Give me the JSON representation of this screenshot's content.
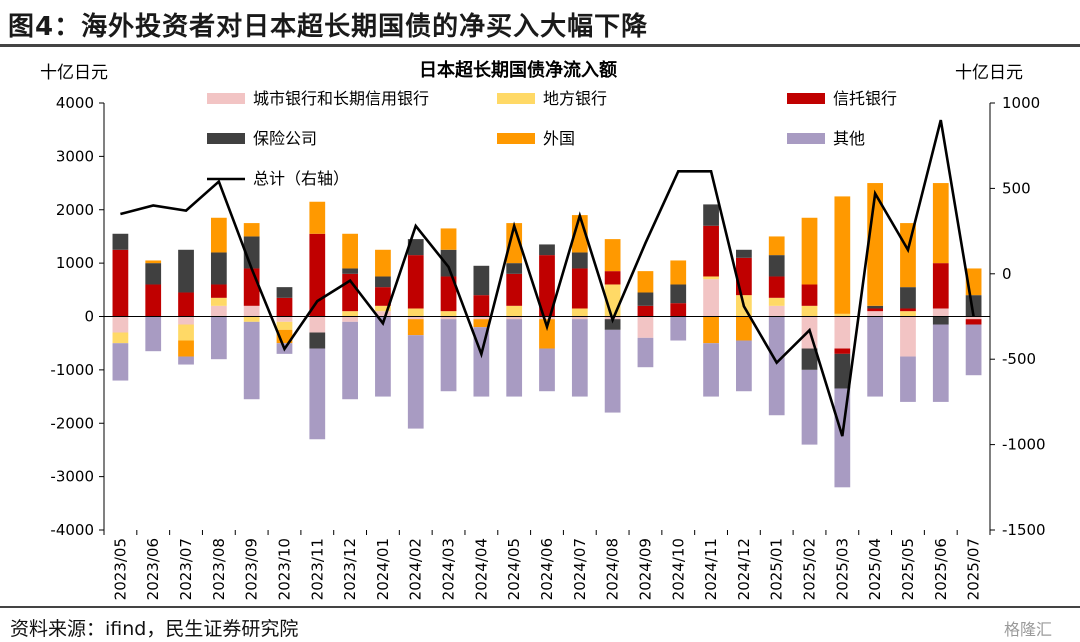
{
  "figure_title": "图4：海外投资者对日本超长期国债的净买入大幅下降",
  "source": "资料来源：ifind，民生证券研究院",
  "watermark": "格隆汇",
  "chart_data": {
    "type": "bar",
    "stacked": true,
    "title": "日本超长期国债净流入额",
    "left_unit": "十亿日元",
    "right_unit": "十亿日元",
    "ylim": [
      -4000,
      4000
    ],
    "yticks": [
      4000,
      3000,
      2000,
      1000,
      0,
      -1000,
      -2000,
      -3000,
      -4000
    ],
    "ylim_right": [
      -1500,
      1000
    ],
    "yticks_right": [
      1000,
      500,
      0,
      -500,
      -1000,
      -1500
    ],
    "categories": [
      "2023/05",
      "2023/06",
      "2023/07",
      "2023/08",
      "2023/09",
      "2023/10",
      "2023/11",
      "2023/12",
      "2024/01",
      "2024/02",
      "2024/03",
      "2024/04",
      "2024/05",
      "2024/06",
      "2024/07",
      "2024/08",
      "2024/09",
      "2024/10",
      "2024/11",
      "2024/12",
      "2025/01",
      "2025/02",
      "2025/03",
      "2025/04",
      "2025/05",
      "2025/06",
      "2025/07"
    ],
    "series": [
      {
        "name": "城市银行和长期信用银行",
        "color": "#F2C4C4",
        "values": [
          -300,
          0,
          -150,
          200,
          200,
          -100,
          -300,
          -100,
          100,
          -50,
          -50,
          -50,
          -50,
          -50,
          -50,
          -50,
          -400,
          0,
          700,
          0,
          200,
          -600,
          -600,
          100,
          -750,
          150,
          -50
        ]
      },
      {
        "name": "地方银行",
        "color": "#FFD966",
        "values": [
          -200,
          0,
          -300,
          150,
          -100,
          -150,
          0,
          100,
          100,
          150,
          100,
          0,
          200,
          0,
          150,
          600,
          0,
          0,
          50,
          400,
          150,
          200,
          50,
          0,
          100,
          0,
          0
        ]
      },
      {
        "name": "信托银行",
        "color": "#C00000",
        "values": [
          1250,
          600,
          450,
          250,
          700,
          350,
          1550,
          700,
          350,
          1000,
          650,
          400,
          600,
          1150,
          750,
          250,
          200,
          250,
          950,
          700,
          400,
          400,
          -100,
          50,
          50,
          850,
          -100
        ]
      },
      {
        "name": "保险公司",
        "color": "#404040",
        "values": [
          300,
          400,
          800,
          600,
          600,
          200,
          -300,
          100,
          200,
          300,
          500,
          550,
          200,
          200,
          300,
          -200,
          250,
          350,
          400,
          150,
          400,
          -400,
          -650,
          50,
          400,
          -150,
          400
        ]
      },
      {
        "name": "外国",
        "color": "#FF9900",
        "values": [
          0,
          50,
          -300,
          650,
          250,
          -250,
          600,
          650,
          500,
          -300,
          400,
          -150,
          750,
          -550,
          700,
          600,
          400,
          450,
          -500,
          -450,
          350,
          1250,
          2200,
          2300,
          1200,
          1500,
          500
        ]
      },
      {
        "name": "其他",
        "color": "#A89BC2",
        "values": [
          -700,
          -650,
          -150,
          -800,
          -1450,
          -200,
          -1700,
          -1450,
          -1500,
          -1750,
          -1350,
          -1300,
          -1450,
          -800,
          -1450,
          -1550,
          -550,
          -450,
          -1000,
          -950,
          -1850,
          -1400,
          -1850,
          -1500,
          -850,
          -1450,
          -950
        ]
      }
    ],
    "line": {
      "name": "总计（右轴）",
      "color": "#000000",
      "values": [
        350,
        400,
        370,
        540,
        30,
        -440,
        -160,
        -40,
        -290,
        280,
        40,
        -470,
        280,
        -310,
        340,
        -270,
        180,
        600,
        600,
        -190,
        -520,
        -330,
        -950,
        470,
        140,
        900,
        -250
      ]
    }
  }
}
